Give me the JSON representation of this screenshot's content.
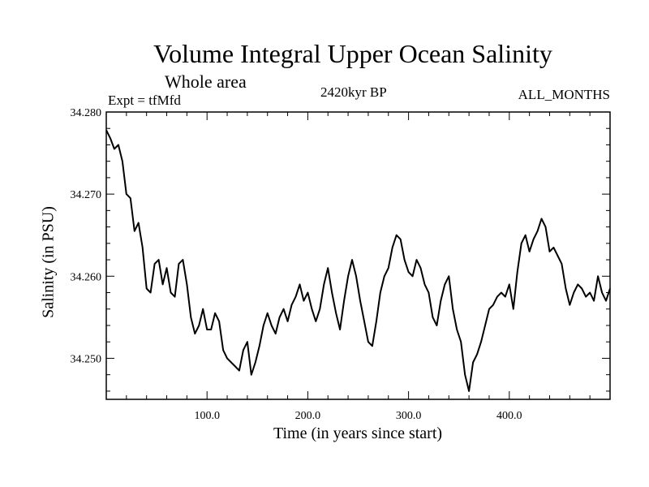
{
  "chart_data": {
    "type": "line",
    "title": "Volume Integral Upper Ocean Salinity",
    "subtitle": "Whole area",
    "experiment": "Expt = tfMfd",
    "period": "2420kyr BP",
    "months": "ALL_MONTHS",
    "xlabel": "Time (in years since start)",
    "ylabel": "Salinity (in PSU)",
    "xlim": [
      0,
      500
    ],
    "ylim": [
      34.245,
      34.28
    ],
    "xticks": [
      {
        "value": 100,
        "label": "100.0"
      },
      {
        "value": 200,
        "label": "200.0"
      },
      {
        "value": 300,
        "label": "300.0"
      },
      {
        "value": 400,
        "label": "400.0"
      }
    ],
    "yticks": [
      {
        "value": 34.25,
        "label": "34.250"
      },
      {
        "value": 34.26,
        "label": "34.260"
      },
      {
        "value": 34.27,
        "label": "34.270"
      },
      {
        "value": 34.28,
        "label": "34.280"
      }
    ],
    "series": [
      {
        "name": "Salinity",
        "color": "#000000",
        "x": [
          0,
          4,
          8,
          12,
          16,
          20,
          24,
          28,
          32,
          36,
          40,
          44,
          48,
          52,
          56,
          60,
          64,
          68,
          72,
          76,
          80,
          84,
          88,
          92,
          96,
          100,
          104,
          108,
          112,
          116,
          120,
          124,
          128,
          132,
          136,
          140,
          144,
          148,
          152,
          156,
          160,
          164,
          168,
          172,
          176,
          180,
          184,
          188,
          192,
          196,
          200,
          204,
          208,
          212,
          216,
          220,
          224,
          228,
          232,
          236,
          240,
          244,
          248,
          252,
          256,
          260,
          264,
          268,
          272,
          276,
          280,
          284,
          288,
          292,
          296,
          300,
          304,
          308,
          312,
          316,
          320,
          324,
          328,
          332,
          336,
          340,
          344,
          348,
          352,
          356,
          360,
          364,
          368,
          372,
          376,
          380,
          384,
          388,
          392,
          396,
          400,
          404,
          408,
          412,
          416,
          420,
          424,
          428,
          432,
          436,
          440,
          444,
          448,
          452,
          456,
          460,
          464,
          468,
          472,
          476,
          480,
          484,
          488,
          492,
          496,
          500
        ],
        "values": [
          34.2778,
          34.2768,
          34.2755,
          34.276,
          34.274,
          34.27,
          34.2695,
          34.2655,
          34.2665,
          34.2635,
          34.2585,
          34.258,
          34.2615,
          34.262,
          34.259,
          34.261,
          34.258,
          34.2575,
          34.2615,
          34.262,
          34.259,
          34.255,
          34.253,
          34.254,
          34.256,
          34.2535,
          34.2535,
          34.2555,
          34.2545,
          34.251,
          34.25,
          34.2495,
          34.249,
          34.2485,
          34.251,
          34.252,
          34.248,
          34.2495,
          34.2515,
          34.254,
          34.2555,
          34.254,
          34.253,
          34.255,
          34.256,
          34.2545,
          34.2565,
          34.2575,
          34.259,
          34.257,
          34.258,
          34.256,
          34.2545,
          34.256,
          34.259,
          34.261,
          34.258,
          34.2555,
          34.2535,
          34.257,
          34.26,
          34.262,
          34.26,
          34.257,
          34.2545,
          34.252,
          34.2515,
          34.2545,
          34.258,
          34.26,
          34.261,
          34.2635,
          34.265,
          34.2645,
          34.262,
          34.2605,
          34.26,
          34.262,
          34.261,
          34.259,
          34.258,
          34.255,
          34.254,
          34.257,
          34.259,
          34.26,
          34.256,
          34.2535,
          34.252,
          34.248,
          34.246,
          34.2495,
          34.2505,
          34.252,
          34.254,
          34.256,
          34.2565,
          34.2575,
          34.258,
          34.2575,
          34.259,
          34.256,
          34.2605,
          34.264,
          34.265,
          34.263,
          34.2645,
          34.2655,
          34.267,
          34.266,
          34.263,
          34.2635,
          34.2625,
          34.2615,
          34.2585,
          34.2565,
          34.258,
          34.259,
          34.2585,
          34.2575,
          34.258,
          34.257,
          34.26,
          34.258,
          34.257,
          34.2585
        ]
      }
    ]
  }
}
